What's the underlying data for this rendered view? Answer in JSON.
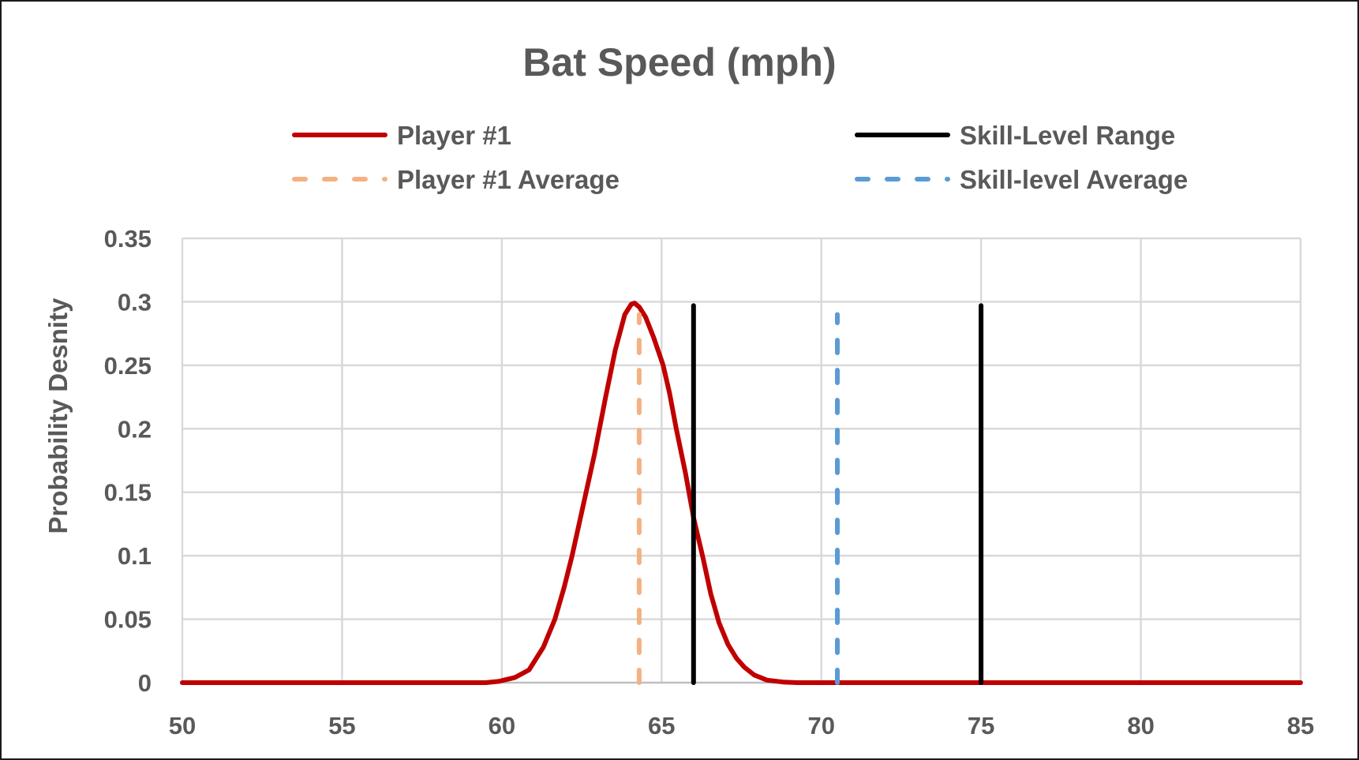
{
  "chart_data": {
    "type": "line",
    "title": "Bat Speed (mph)",
    "xlabel": "",
    "ylabel": "Probability Desnity",
    "xlim": [
      50,
      85
    ],
    "ylim": [
      0,
      0.35
    ],
    "xticks": [
      "50",
      "55",
      "60",
      "65",
      "70",
      "75",
      "80",
      "85"
    ],
    "yticks": [
      "0",
      "0.05",
      "0.1",
      "0.15",
      "0.2",
      "0.25",
      "0.3",
      "0.35"
    ],
    "grid": true,
    "legend_position": "top",
    "series": [
      {
        "name": "Player #1",
        "color": "#C00000",
        "style": "solid",
        "x": [
          50,
          59.5,
          59.9,
          60.4,
          60.85,
          61.3,
          61.66,
          61.95,
          62.2,
          62.55,
          62.9,
          63.25,
          63.55,
          63.85,
          64.05,
          64.15,
          64.3,
          64.5,
          64.75,
          65.05,
          65.25,
          65.46,
          65.75,
          66.0,
          66.3,
          66.54,
          66.8,
          67.08,
          67.35,
          67.6,
          67.9,
          68.3,
          68.8,
          69.25,
          85
        ],
        "y": [
          0,
          0,
          0.001,
          0.004,
          0.01,
          0.028,
          0.05,
          0.075,
          0.1,
          0.14,
          0.18,
          0.225,
          0.262,
          0.29,
          0.298,
          0.299,
          0.296,
          0.288,
          0.272,
          0.25,
          0.228,
          0.2,
          0.165,
          0.13,
          0.098,
          0.07,
          0.047,
          0.03,
          0.019,
          0.012,
          0.006,
          0.002,
          0.0005,
          0,
          0
        ]
      },
      {
        "name": "Player #1 Average",
        "color": "#F4B183",
        "style": "dashed",
        "x": [
          64.3,
          64.3
        ],
        "y": [
          0,
          0.29
        ]
      },
      {
        "name": "Skill-Level Range",
        "color": "#000000",
        "style": "solid",
        "segments": [
          {
            "x": [
              66,
              66
            ],
            "y": [
              0,
              0.297
            ]
          },
          {
            "x": [
              75,
              75
            ],
            "y": [
              0,
              0.297
            ]
          }
        ]
      },
      {
        "name": "Skill-level Average",
        "color": "#5B9BD5",
        "style": "dashed",
        "x": [
          70.5,
          70.5
        ],
        "y": [
          0,
          0.29
        ]
      }
    ]
  }
}
